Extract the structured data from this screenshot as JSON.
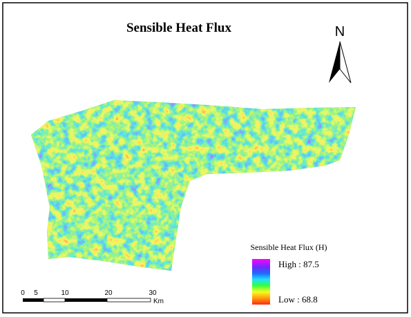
{
  "title": "Sensible Heat Flux",
  "north": "N",
  "legend": {
    "title": "Sensible Heat Flux (H)",
    "high": "High : 87.5",
    "low": "Low : 68.8"
  },
  "scale_bar": {
    "labels": [
      "0",
      "5",
      "10",
      "20",
      "30"
    ],
    "unit": "Km"
  }
}
